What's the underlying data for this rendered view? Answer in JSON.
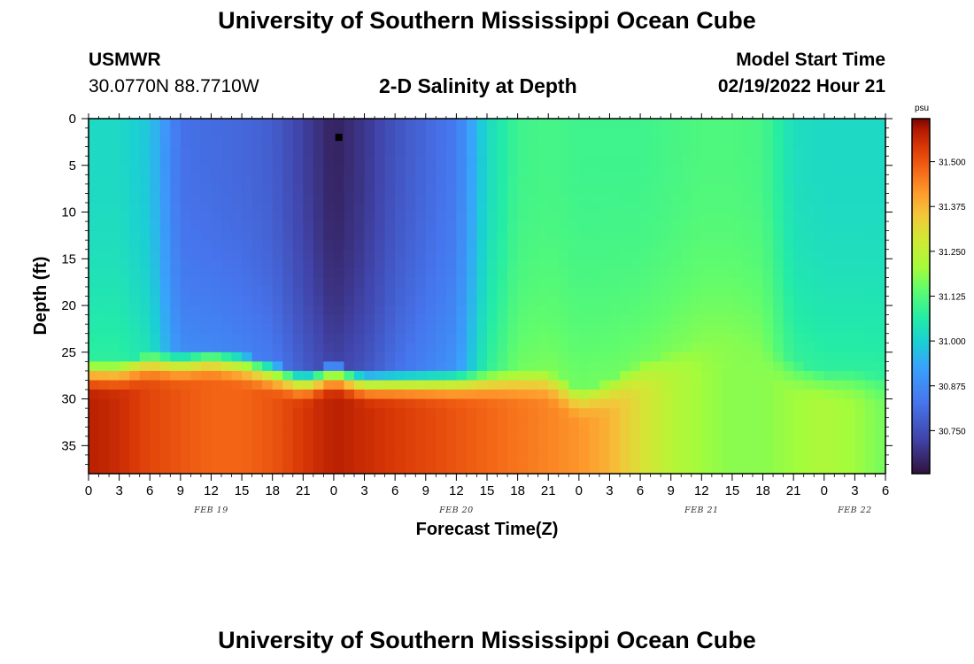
{
  "header": {
    "title": "University of Southern Mississippi Ocean Cube",
    "station": "USMWR",
    "coords": "30.0770N  88.7710W",
    "subtitle": "2-D Salinity at Depth",
    "model_start_label": "Model Start Time",
    "model_start_value": "02/19/2022 Hour 21"
  },
  "footer": {
    "title": "University of Southern Mississippi Ocean Cube"
  },
  "chart_data": {
    "type": "heatmap",
    "title": "2-D Salinity at Depth",
    "xlabel": "Forecast Time(Z)",
    "ylabel": "Depth (ft)",
    "xlim": [
      0,
      78
    ],
    "ylim": [
      0,
      38
    ],
    "y_inverted": true,
    "x_tick_labels": [
      "0",
      "3",
      "6",
      "9",
      "12",
      "15",
      "18",
      "21",
      "0",
      "3",
      "6",
      "9",
      "12",
      "15",
      "18",
      "21",
      "0",
      "3",
      "6",
      "9",
      "12",
      "15",
      "18",
      "21",
      "0",
      "3",
      "6"
    ],
    "x_tick_hours": [
      0,
      3,
      6,
      9,
      12,
      15,
      18,
      21,
      24,
      27,
      30,
      33,
      36,
      39,
      42,
      45,
      48,
      51,
      54,
      57,
      60,
      63,
      66,
      69,
      72,
      75,
      78
    ],
    "y_tick_labels": [
      "0",
      "5",
      "10",
      "15",
      "20",
      "25",
      "30",
      "35"
    ],
    "y_tick_values": [
      0,
      5,
      10,
      15,
      20,
      25,
      30,
      35
    ],
    "date_labels": [
      {
        "text": "FEB 19",
        "hour": 12
      },
      {
        "text": "FEB 20",
        "hour": 36
      },
      {
        "text": "FEB 21",
        "hour": 60
      },
      {
        "text": "FEB 22",
        "hour": 75
      }
    ],
    "colorbar": {
      "unit": "psu",
      "min": 30.63,
      "max": 31.62,
      "tick_labels": [
        "31.500",
        "31.375",
        "31.250",
        "31.125",
        "31.000",
        "30.875",
        "30.750"
      ],
      "tick_values": [
        31.5,
        31.375,
        31.25,
        31.125,
        31.0,
        30.875,
        30.75
      ]
    },
    "marker": {
      "hour": 24.5,
      "depth": 2
    },
    "surface_salinity_profile": {
      "hours": [
        0,
        3,
        6,
        9,
        12,
        15,
        18,
        21,
        24,
        27,
        30,
        33,
        36,
        39,
        42,
        45,
        48,
        51,
        54,
        57,
        60,
        63,
        66,
        69,
        72,
        75,
        78
      ],
      "values": [
        31.02,
        31.02,
        30.98,
        30.82,
        30.81,
        30.8,
        30.78,
        30.72,
        30.66,
        30.7,
        30.76,
        30.8,
        30.84,
        31.02,
        31.1,
        31.11,
        31.1,
        31.1,
        31.1,
        31.11,
        31.12,
        31.12,
        31.11,
        31.03,
        31.02,
        31.02,
        31.02
      ]
    },
    "mixed_layer_depth_ft": {
      "hours": [
        0,
        3,
        6,
        9,
        12,
        15,
        18,
        21,
        24,
        27,
        30,
        33,
        36,
        39,
        42,
        45,
        48,
        51,
        54,
        57,
        60,
        63,
        66,
        69,
        72,
        75,
        78
      ],
      "values": [
        26,
        26,
        25,
        25,
        24.5,
        25,
        26,
        27,
        26,
        27,
        27,
        27,
        27,
        27,
        27,
        27,
        29,
        28,
        26,
        25,
        24,
        24,
        24.5,
        26,
        27,
        27,
        27.5
      ]
    },
    "bottom_salinity_profile": {
      "hours": [
        0,
        3,
        6,
        9,
        12,
        15,
        18,
        21,
        24,
        27,
        30,
        33,
        36,
        39,
        42,
        45,
        48,
        51,
        54,
        57,
        60,
        63,
        66,
        69,
        72,
        75,
        78
      ],
      "values": [
        31.58,
        31.56,
        31.52,
        31.5,
        31.48,
        31.48,
        31.5,
        31.54,
        31.58,
        31.56,
        31.54,
        31.52,
        31.5,
        31.48,
        31.46,
        31.44,
        31.42,
        31.38,
        31.3,
        31.24,
        31.2,
        31.18,
        31.18,
        31.2,
        31.22,
        31.2,
        31.16
      ]
    }
  }
}
